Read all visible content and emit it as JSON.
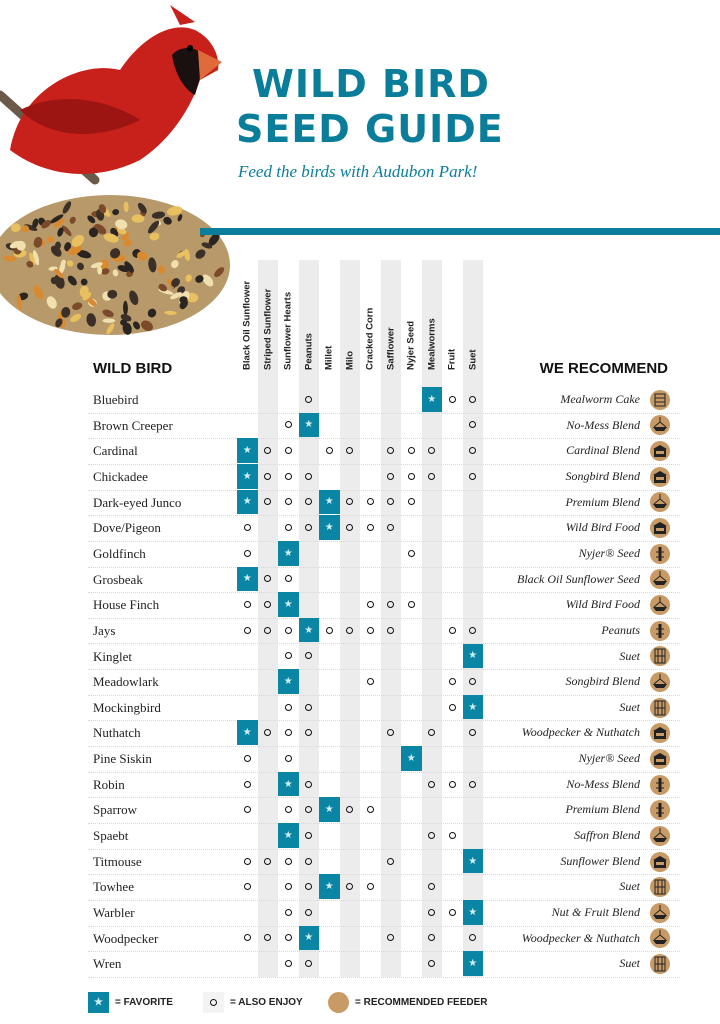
{
  "header": {
    "title_line1": "WILD BIRD",
    "title_line2": "SEED GUIDE",
    "subtitle": "Feed the birds with Audubon Park!"
  },
  "colors": {
    "accent": "#0a7d9b",
    "favorite": "#0a86a4",
    "feeder": "#c79a66"
  },
  "table": {
    "bird_header": "WILD BIRD",
    "recommend_header": "WE RECOMMEND",
    "seeds": [
      "Black Oil Sunflower",
      "Striped Sunflower",
      "Sunflower Hearts",
      "Peanuts",
      "Millet",
      "Milo",
      "Cracked Corn",
      "Safflower",
      "Nyjer Seed",
      "Mealworms",
      "Fruit",
      "Suet"
    ],
    "legend_codes": {
      "F": "favorite",
      "o": "also-enjoy",
      ".": "none"
    },
    "rows": [
      {
        "bird": "Bluebird",
        "marks": "...o.....Foo",
        "recommend": "Mealworm Cake",
        "icon": "suet-cake-icon"
      },
      {
        "bird": "Brown Creeper",
        "marks": "..oF.......o",
        "recommend": "No-Mess Blend",
        "icon": "tray-feeder-icon"
      },
      {
        "bird": "Cardinal",
        "marks": "Foo.oo.ooo.o",
        "recommend": "Cardinal Blend",
        "icon": "house-feeder-icon"
      },
      {
        "bird": "Chickadee",
        "marks": "Fooo...ooo.o",
        "recommend": "Songbird Blend",
        "icon": "house-feeder-icon"
      },
      {
        "bird": "Dark-eyed Junco",
        "marks": "FoooFoooo...",
        "recommend": "Premium Blend",
        "icon": "tray-feeder-icon"
      },
      {
        "bird": "Dove/Pigeon",
        "marks": "o.ooFooo....",
        "recommend": "Wild Bird Food",
        "icon": "house-feeder-icon"
      },
      {
        "bird": "Goldfinch",
        "marks": "o.F.....o...",
        "recommend": "Nyjer® Seed",
        "icon": "tube-feeder-icon"
      },
      {
        "bird": "Grosbeak",
        "marks": "Foo.........",
        "recommend": "Black Oil Sunflower Seed",
        "icon": "tray-feeder-icon"
      },
      {
        "bird": "House Finch",
        "marks": "ooF...ooo...",
        "recommend": "Wild Bird Food",
        "icon": "tray-feeder-icon"
      },
      {
        "bird": "Jays",
        "marks": "oooFoooo..oo",
        "recommend": "Peanuts",
        "icon": "tube-feeder-icon"
      },
      {
        "bird": "Kinglet",
        "marks": "..oo.......F",
        "recommend": "Suet",
        "icon": "suet-cage-icon"
      },
      {
        "bird": "Meadowlark",
        "marks": "..F...o...oo",
        "recommend": "Songbird Blend",
        "icon": "tray-feeder-icon"
      },
      {
        "bird": "Mockingbird",
        "marks": "..oo......oF",
        "recommend": "Suet",
        "icon": "suet-cage-icon"
      },
      {
        "bird": "Nuthatch",
        "marks": "Fooo...o.o.o",
        "recommend": "Woodpecker & Nuthatch",
        "icon": "house-feeder-icon"
      },
      {
        "bird": "Pine Siskin",
        "marks": "o.o.....F...",
        "recommend": "Nyjer® Seed",
        "icon": "house-feeder-icon"
      },
      {
        "bird": "Robin",
        "marks": "o.Fo.....ooo",
        "recommend": "No-Mess Blend",
        "icon": "tube-feeder-icon"
      },
      {
        "bird": "Sparrow",
        "marks": "o.ooFoo.....",
        "recommend": "Premium Blend",
        "icon": "tube-feeder-icon"
      },
      {
        "bird": "Spaebt",
        "marks": "..Fo.....oo.",
        "recommend": "Saffron Blend",
        "icon": "tray-feeder-icon"
      },
      {
        "bird": "Titmouse",
        "marks": "oooo...o...F",
        "recommend": "Sunflower Blend",
        "icon": "house-feeder-icon"
      },
      {
        "bird": "Towhee",
        "marks": "o.ooFoo..o..",
        "recommend": "Suet",
        "icon": "suet-cage-icon"
      },
      {
        "bird": "Warbler",
        "marks": "..oo.....ooF",
        "recommend": "Nut & Fruit Blend",
        "icon": "tray-feeder-icon"
      },
      {
        "bird": "Woodpecker",
        "marks": "oooF...o.o.o",
        "recommend": "Woodpecker & Nuthatch",
        "icon": "tray-feeder-icon"
      },
      {
        "bird": "Wren",
        "marks": "..oo.....o.F",
        "recommend": "Suet",
        "icon": "suet-cage-icon"
      }
    ]
  },
  "legend": {
    "favorite": "= FAVORITE",
    "enjoy": "= ALSO ENJOY",
    "recommended": "= RECOMMENDED FEEDER"
  }
}
